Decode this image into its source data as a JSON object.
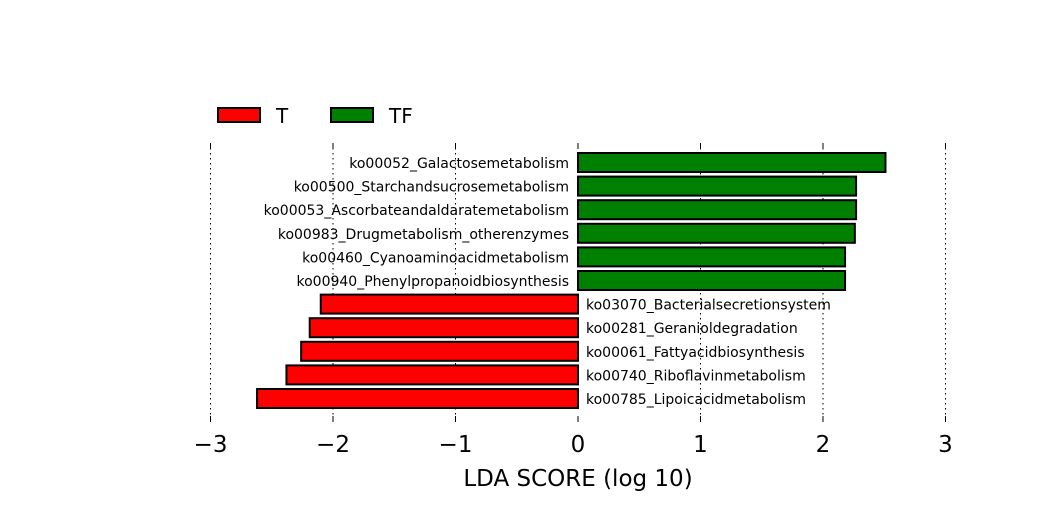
{
  "chart_data": {
    "type": "bar",
    "orientation": "horizontal",
    "xlabel": "LDA SCORE (log 10)",
    "xlim": [
      -3,
      3
    ],
    "xticks": [
      -3,
      -2,
      -1,
      0,
      1,
      2,
      3
    ],
    "xtick_labels": [
      "−3",
      "−2",
      "−1",
      "0",
      "1",
      "2",
      "3"
    ],
    "grid": "vertical dotted lines at x ticks",
    "legend": {
      "placement": "top-left",
      "entries": [
        {
          "label": "T",
          "color": "#ff0000"
        },
        {
          "label": "TF",
          "color": "#008000"
        }
      ]
    },
    "categories": [
      "ko00052_Galactosemetabolism",
      "ko00500_Starchandsucrosemetabolism",
      "ko00053_Ascorbateandaldaratemetabolism",
      "ko00983_Drugmetabolism_otherenzymes",
      "ko00460_Cyanoaminoacidmetabolism",
      "ko00940_Phenylpropanoidbiosynthesis",
      "ko03070_Bacterialsecretionsystem",
      "ko00281_Geranioldegradation",
      "ko00061_Fattyacidbiosynthesis",
      "ko00740_Riboflavinmetabolism",
      "ko00785_Lipoicacidmetabolism"
    ],
    "values": [
      2.51,
      2.27,
      2.27,
      2.26,
      2.18,
      2.18,
      -2.1,
      -2.19,
      -2.26,
      -2.38,
      -2.62
    ],
    "groups": [
      "TF",
      "TF",
      "TF",
      "TF",
      "TF",
      "TF",
      "T",
      "T",
      "T",
      "T",
      "T"
    ]
  }
}
